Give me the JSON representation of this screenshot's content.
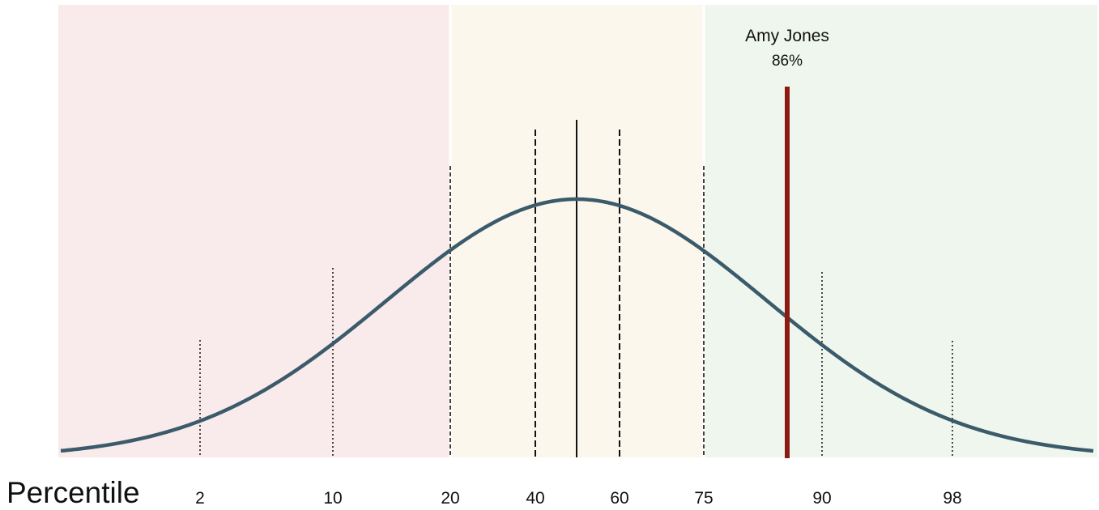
{
  "chart_data": {
    "type": "area",
    "xlabel": "Percentile",
    "ylabel": "",
    "percentile_ticks": [
      {
        "label": "2",
        "value": 2,
        "style": "dotted"
      },
      {
        "label": "10",
        "value": 10,
        "style": "dotted"
      },
      {
        "label": "20",
        "value": 20,
        "style": "short-dash"
      },
      {
        "label": "40",
        "value": 40,
        "style": "dash"
      },
      {
        "label": "",
        "value": 50,
        "style": "solid"
      },
      {
        "label": "60",
        "value": 60,
        "style": "dash"
      },
      {
        "label": "75",
        "value": 75,
        "style": "short-dash"
      },
      {
        "label": "90",
        "value": 90,
        "style": "dotted"
      },
      {
        "label": "98",
        "value": 98,
        "style": "dotted"
      }
    ],
    "bands": [
      {
        "from": 0,
        "to": 20,
        "color": "#f9ebeb"
      },
      {
        "from": 20,
        "to": 75,
        "color": "#fbf7ec"
      },
      {
        "from": 75,
        "to": 100,
        "color": "#eff6ed"
      }
    ],
    "marker": {
      "name": "Amy Jones",
      "value_label": "86%",
      "percentile": 86,
      "color": "#8b1a12"
    },
    "curve_color": "#3b5b6b"
  }
}
